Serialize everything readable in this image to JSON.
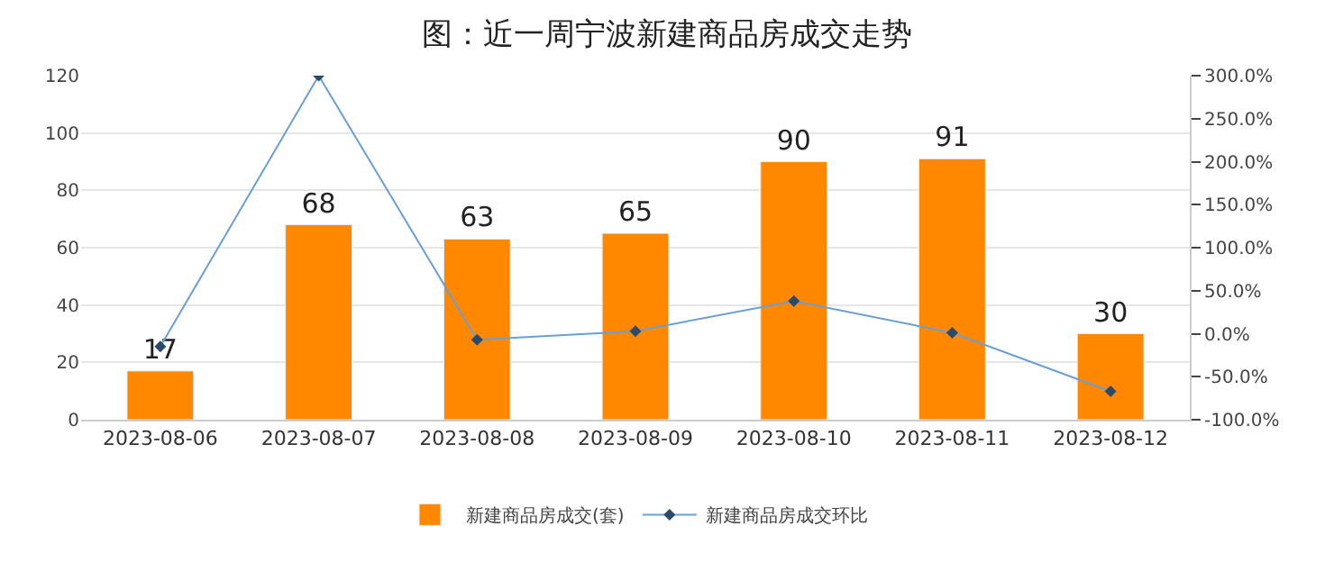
{
  "chart_data": {
    "type": "bar",
    "title": "图：近一周宁波新建商品房成交走势",
    "categories": [
      "2023-08-06",
      "2023-08-07",
      "2023-08-08",
      "2023-08-09",
      "2023-08-10",
      "2023-08-11",
      "2023-08-12"
    ],
    "series": [
      {
        "name": "新建商品房成交(套)",
        "color": "#ff8800",
        "values": [
          17,
          68,
          63,
          65,
          90,
          91,
          30
        ],
        "value_labels": [
          "17",
          "68",
          "63",
          "65",
          "90",
          "91",
          "30"
        ]
      },
      {
        "name": "新建商品房成交环比",
        "type": "line",
        "axis": "y2",
        "color": "#6a9fd4",
        "marker": "diamond",
        "values": [
          -15,
          300,
          -7,
          3,
          38,
          1,
          -67
        ]
      }
    ],
    "ylim": [
      0,
      120
    ],
    "yticks": [
      0,
      20,
      40,
      60,
      80,
      100,
      120
    ],
    "y2lim": [
      -100,
      300
    ],
    "y2ticks": [
      {
        "value": -100,
        "label": "-100.0%"
      },
      {
        "value": -50,
        "label": "-50.0%"
      },
      {
        "value": 0,
        "label": "0.0%"
      },
      {
        "value": 50,
        "label": "50.0%"
      },
      {
        "value": 100,
        "label": "100.0%"
      },
      {
        "value": 150,
        "label": "150.0%"
      },
      {
        "value": 200,
        "label": "200.0%"
      },
      {
        "value": 250,
        "label": "250.0%"
      },
      {
        "value": 300,
        "label": "300.0%"
      }
    ],
    "grid": "y",
    "legend": "bottom"
  }
}
